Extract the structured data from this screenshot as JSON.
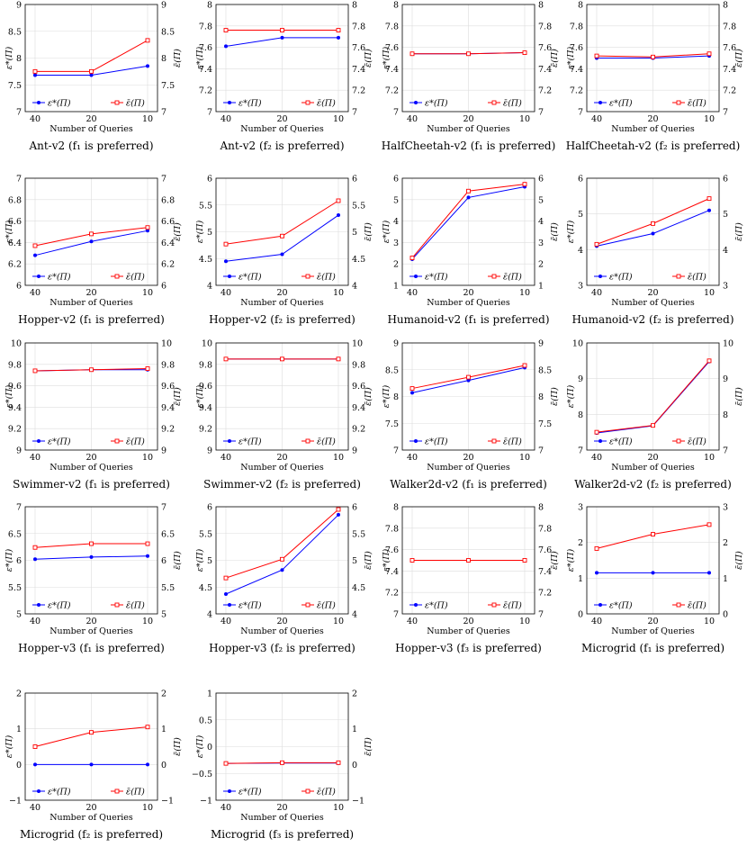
{
  "figure": {
    "xlabel": "Number of Queries",
    "left_ylabel": "ε*(Π)",
    "right_ylabel": "ε̄(Π)",
    "legend_star": "ε*(Π)",
    "legend_bar": "ε̄(Π)",
    "colors": {
      "star": "#0000ff",
      "bar": "#ff0000",
      "grid": "#dddddd",
      "axis": "#000000"
    }
  },
  "chart_data": [
    {
      "type": "line",
      "caption": "Ant-v2 (f₁ is preferred)",
      "categories": [
        "40",
        "20",
        "10"
      ],
      "ylim": [
        7,
        9
      ],
      "ticks": [
        "7",
        "7.5",
        "8",
        "8.5",
        "9"
      ],
      "series": [
        {
          "name": "ε*(Π)",
          "values": [
            7.68,
            7.68,
            7.85
          ]
        },
        {
          "name": "ε̄(Π)",
          "values": [
            7.75,
            7.75,
            8.33
          ]
        }
      ]
    },
    {
      "type": "line",
      "caption": "Ant-v2 (f₂ is preferred)",
      "categories": [
        "40",
        "20",
        "10"
      ],
      "ylim": [
        7,
        8
      ],
      "ticks": [
        "7",
        "7.2",
        "7.4",
        "7.6",
        "7.8",
        "8"
      ],
      "series": [
        {
          "name": "ε*(Π)",
          "values": [
            7.61,
            7.69,
            7.69
          ]
        },
        {
          "name": "ε̄(Π)",
          "values": [
            7.76,
            7.76,
            7.76
          ]
        }
      ]
    },
    {
      "type": "line",
      "caption": "HalfCheetah-v2 (f₁ is preferred)",
      "categories": [
        "40",
        "20",
        "10"
      ],
      "ylim": [
        7,
        8
      ],
      "ticks": [
        "7",
        "7.2",
        "7.4",
        "7.6",
        "7.8",
        "8"
      ],
      "series": [
        {
          "name": "ε*(Π)",
          "values": [
            7.54,
            7.54,
            7.55
          ]
        },
        {
          "name": "ε̄(Π)",
          "values": [
            7.54,
            7.54,
            7.55
          ]
        }
      ]
    },
    {
      "type": "line",
      "caption": "HalfCheetah-v2 (f₂ is preferred)",
      "categories": [
        "40",
        "20",
        "10"
      ],
      "ylim": [
        7,
        8
      ],
      "ticks": [
        "7",
        "7.2",
        "7.4",
        "7.6",
        "7.8",
        "8"
      ],
      "series": [
        {
          "name": "ε*(Π)",
          "values": [
            7.5,
            7.5,
            7.52
          ]
        },
        {
          "name": "ε̄(Π)",
          "values": [
            7.52,
            7.51,
            7.54
          ]
        }
      ]
    },
    {
      "type": "line",
      "caption": "Hopper-v2 (f₁  is preferred)",
      "categories": [
        "40",
        "20",
        "10"
      ],
      "ylim": [
        6,
        7
      ],
      "ticks": [
        "6",
        "6.2",
        "6.4",
        "6.6",
        "6.8",
        "7"
      ],
      "series": [
        {
          "name": "ε*(Π)",
          "values": [
            6.28,
            6.41,
            6.51
          ]
        },
        {
          "name": "ε̄(Π)",
          "values": [
            6.37,
            6.48,
            6.54
          ]
        }
      ]
    },
    {
      "type": "line",
      "caption": "Hopper-v2 (f₂  is preferred)",
      "categories": [
        "40",
        "20",
        "10"
      ],
      "ylim": [
        4,
        6
      ],
      "ticks": [
        "4",
        "4.5",
        "5",
        "5.5",
        "6"
      ],
      "series": [
        {
          "name": "ε*(Π)",
          "values": [
            4.45,
            4.58,
            5.31
          ]
        },
        {
          "name": "ε̄(Π)",
          "values": [
            4.77,
            4.92,
            5.58
          ]
        }
      ]
    },
    {
      "type": "line",
      "caption": "Humanoid-v2 (f₁ is preferred)",
      "categories": [
        "40",
        "20",
        "10"
      ],
      "ylim": [
        1,
        6
      ],
      "ticks": [
        "1",
        "2",
        "3",
        "4",
        "5",
        "6"
      ],
      "series": [
        {
          "name": "ε*(Π)",
          "values": [
            2.22,
            5.1,
            5.6
          ]
        },
        {
          "name": "ε̄(Π)",
          "values": [
            2.28,
            5.4,
            5.72
          ]
        }
      ]
    },
    {
      "type": "line",
      "caption": "Humanoid-v2 (f₂ is preferred)",
      "categories": [
        "40",
        "20",
        "10"
      ],
      "ylim": [
        3,
        6
      ],
      "ticks": [
        "3",
        "4",
        "5",
        "6"
      ],
      "series": [
        {
          "name": "ε*(Π)",
          "values": [
            4.1,
            4.45,
            5.1
          ]
        },
        {
          "name": "ε̄(Π)",
          "values": [
            4.15,
            4.73,
            5.43
          ]
        }
      ]
    },
    {
      "type": "line",
      "caption": "Swimmer-v2 (f₁ is preferred)",
      "categories": [
        "40",
        "20",
        "10"
      ],
      "ylim": [
        9,
        10
      ],
      "ticks": [
        "9",
        "9.2",
        "9.4",
        "9.6",
        "9.8",
        "10"
      ],
      "series": [
        {
          "name": "ε*(Π)",
          "values": [
            9.74,
            9.75,
            9.75
          ]
        },
        {
          "name": "ε̄(Π)",
          "values": [
            9.74,
            9.75,
            9.76
          ]
        }
      ]
    },
    {
      "type": "line",
      "caption": "Swimmer-v2 (f₂ is preferred)",
      "categories": [
        "40",
        "20",
        "10"
      ],
      "ylim": [
        9,
        10
      ],
      "ticks": [
        "9",
        "9.2",
        "9.4",
        "9.6",
        "9.8",
        "10"
      ],
      "series": [
        {
          "name": "ε*(Π)",
          "values": [
            9.85,
            9.85,
            9.85
          ]
        },
        {
          "name": "ε̄(Π)",
          "values": [
            9.85,
            9.85,
            9.85
          ]
        }
      ]
    },
    {
      "type": "line",
      "caption": "Walker2d-v2 (f₁ is preferred)",
      "categories": [
        "40",
        "20",
        "10"
      ],
      "ylim": [
        7,
        9
      ],
      "ticks": [
        "7",
        "7.5",
        "8",
        "8.5",
        "9"
      ],
      "series": [
        {
          "name": "ε*(Π)",
          "values": [
            8.07,
            8.3,
            8.54
          ]
        },
        {
          "name": "ε̄(Π)",
          "values": [
            8.15,
            8.36,
            8.58
          ]
        }
      ]
    },
    {
      "type": "line",
      "caption": "Walker2d-v2 (f₂ is preferred)",
      "categories": [
        "40",
        "20",
        "10"
      ],
      "ylim": [
        7,
        10
      ],
      "ticks": [
        "7",
        "8",
        "9",
        "10"
      ],
      "series": [
        {
          "name": "ε*(Π)",
          "values": [
            7.48,
            7.68,
            9.48
          ]
        },
        {
          "name": "ε̄(Π)",
          "values": [
            7.5,
            7.69,
            9.5
          ]
        }
      ]
    },
    {
      "type": "line",
      "caption": "Hopper-v3 (f₁ is preferred)",
      "categories": [
        "40",
        "20",
        "10"
      ],
      "ylim": [
        5,
        7
      ],
      "ticks": [
        "5",
        "5.5",
        "6",
        "6.5",
        "7"
      ],
      "series": [
        {
          "name": "ε*(Π)",
          "values": [
            6.02,
            6.06,
            6.08
          ]
        },
        {
          "name": "ε̄(Π)",
          "values": [
            6.24,
            6.31,
            6.31
          ]
        }
      ]
    },
    {
      "type": "line",
      "caption": "Hopper-v3 (f₂ is preferred)",
      "categories": [
        "40",
        "20",
        "10"
      ],
      "ylim": [
        4,
        6
      ],
      "ticks": [
        "4",
        "4.5",
        "5",
        "5.5",
        "6"
      ],
      "series": [
        {
          "name": "ε*(Π)",
          "values": [
            4.37,
            4.82,
            5.85
          ]
        },
        {
          "name": "ε̄(Π)",
          "values": [
            4.67,
            5.02,
            5.95
          ]
        }
      ]
    },
    {
      "type": "line",
      "caption": "Hopper-v3 (f₃ is preferred)",
      "categories": [
        "40",
        "20",
        "10"
      ],
      "ylim": [
        7,
        8
      ],
      "ticks": [
        "7",
        "7.2",
        "7.4",
        "7.6",
        "7.8",
        "8"
      ],
      "series": [
        {
          "name": "ε*(Π)",
          "values": [
            7.5,
            7.5,
            7.5
          ]
        },
        {
          "name": "ε̄(Π)",
          "values": [
            7.5,
            7.5,
            7.5
          ]
        }
      ]
    },
    {
      "type": "line",
      "caption": "Microgrid (f₁ is preferred)",
      "categories": [
        "40",
        "20",
        "10"
      ],
      "ylim": [
        0,
        3
      ],
      "ticks": [
        "0",
        "1",
        "2",
        "3"
      ],
      "series": [
        {
          "name": "ε*(Π)",
          "values": [
            1.15,
            1.15,
            1.15
          ]
        },
        {
          "name": "ε̄(Π)",
          "values": [
            1.83,
            2.23,
            2.5
          ]
        }
      ]
    },
    {
      "type": "line",
      "caption": "Microgrid (f₂ is preferred)",
      "categories": [
        "40",
        "20",
        "10"
      ],
      "ylim": [
        -1,
        2
      ],
      "ticks": [
        "−1",
        "0",
        "1",
        "2"
      ],
      "series": [
        {
          "name": "ε*(Π)",
          "values": [
            0,
            0,
            0
          ]
        },
        {
          "name": "ε̄(Π)",
          "values": [
            0.5,
            0.9,
            1.05
          ]
        }
      ]
    },
    {
      "type": "line",
      "caption": "Microgrid (f₃ is preferred)",
      "categories": [
        "40",
        "20",
        "10"
      ],
      "ylim": [
        -1,
        2
      ],
      "ticks": [
        "−1",
        "−0.5",
        "0",
        "0.5",
        "1"
      ],
      "right_ticks": [
        "−1",
        "0",
        "1",
        "2"
      ],
      "series": [
        {
          "name": "ε*(Π)",
          "values": [
            0.03,
            0.04,
            0.04
          ]
        },
        {
          "name": "ε̄(Π)",
          "values": [
            0.03,
            0.05,
            0.05
          ]
        }
      ]
    }
  ]
}
